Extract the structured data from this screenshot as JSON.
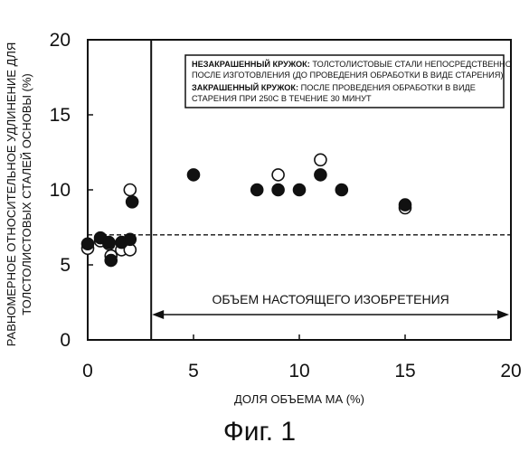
{
  "chart_data": {
    "type": "scatter",
    "title": "",
    "xlabel": "ДОЛЯ ОБЪЕМА МА (%)",
    "ylabel_line1": "РАВНОМЕРНОЕ ОТНОСИТЕЛЬНОЕ УДЛИНЕНИЕ ДЛЯ",
    "ylabel_line2": "ТОЛСТОЛИСТОВЫХ СТАЛЕЙ ОСНОВЫ (%)",
    "xlim": [
      0,
      20
    ],
    "ylim": [
      0,
      20
    ],
    "x_ticks": [
      "0",
      "5",
      "10",
      "15",
      "20"
    ],
    "y_ticks": [
      "0",
      "5",
      "10",
      "15",
      "20"
    ],
    "grid": false,
    "threshold_y": 7,
    "boundary_x": 3,
    "legend": {
      "open_label": "НЕЗАКРАШЕННЫЙ КРУЖОК:",
      "open_text_1": "ТОЛСТОЛИСТОВЫЕ СТАЛИ НЕПОСРЕДСТВЕННО",
      "open_text_2": "ПОСЛЕ ИЗГОТОВЛЕНИЯ (ДО ПРОВЕДЕНИЯ ОБРАБОТКИ В ВИДЕ СТАРЕНИЯ)",
      "filled_label": "ЗАКРАШЕННЫЙ КРУЖОК:",
      "filled_text_1": "ПОСЛЕ ПРОВЕДЕНИЯ ОБРАБОТКИ В ВИДЕ",
      "filled_text_2": "СТАРЕНИЯ ПРИ 250С В ТЕЧЕНИЕ 30 МИНУТ"
    },
    "region_label": "ОБЪЕМ НАСТОЯЩЕГО ИЗОБРЕТЕНИЯ",
    "region_range": [
      3,
      20
    ],
    "series": [
      {
        "marker": "open",
        "points": [
          [
            0,
            6.1
          ],
          [
            0.6,
            6.6
          ],
          [
            1.0,
            6.4
          ],
          [
            1.1,
            5.6
          ],
          [
            1.6,
            6.0
          ],
          [
            2.0,
            6.0
          ],
          [
            2.0,
            10.0
          ],
          [
            9.0,
            11.0
          ],
          [
            11.0,
            12.0
          ],
          [
            15.0,
            8.8
          ]
        ]
      },
      {
        "marker": "filled",
        "points": [
          [
            0,
            6.4
          ],
          [
            0.6,
            6.8
          ],
          [
            1.0,
            6.5
          ],
          [
            1.1,
            5.3
          ],
          [
            1.6,
            6.5
          ],
          [
            2.0,
            6.7
          ],
          [
            2.1,
            9.2
          ],
          [
            5.0,
            11.0
          ],
          [
            8.0,
            10.0
          ],
          [
            9.0,
            10.0
          ],
          [
            10.0,
            10.0
          ],
          [
            11.0,
            11.0
          ],
          [
            12.0,
            10.0
          ],
          [
            15.0,
            9.0
          ]
        ]
      }
    ]
  },
  "figure_caption": "Фиг. 1",
  "colors": {
    "ink": "#111111",
    "background": "#ffffff"
  }
}
